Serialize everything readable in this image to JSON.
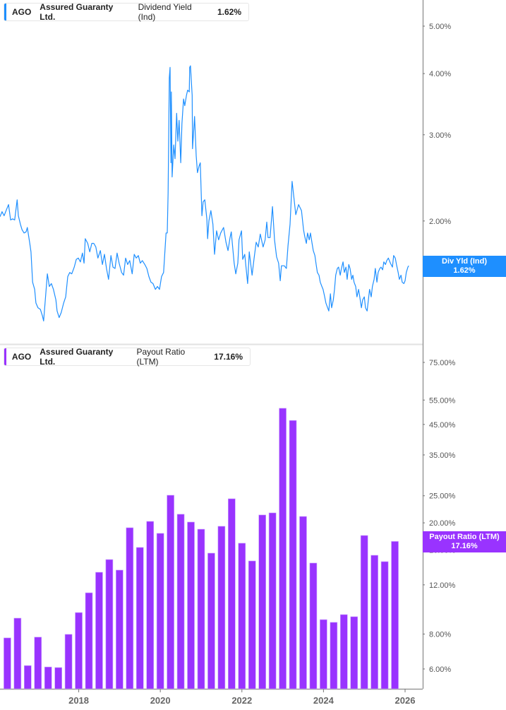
{
  "chart_data": [
    {
      "type": "line",
      "legend": {
        "ticker": "AGO",
        "company": "Assured Guaranty Ltd.",
        "metric": "Dividend Yield (Ind)",
        "value": "1.62%"
      },
      "badge": {
        "label": "Div Yld (Ind)",
        "value": "1.62%"
      },
      "color": "#1e8fff",
      "y_scale": "log",
      "y_ticks": [
        "2.00%",
        "3.00%",
        "4.00%",
        "5.00%"
      ],
      "y_tick_values": [
        2,
        3,
        4,
        5
      ],
      "ylim": [
        1.2,
        5.6
      ],
      "series": [
        {
          "points": [
            [
              2016.07,
              2.04
            ],
            [
              2016.12,
              2.09
            ],
            [
              2016.17,
              2.05
            ],
            [
              2016.23,
              2.11
            ],
            [
              2016.28,
              2.16
            ],
            [
              2016.33,
              2.01
            ],
            [
              2016.38,
              2.02
            ],
            [
              2016.43,
              2.01
            ],
            [
              2016.49,
              2.21
            ],
            [
              2016.52,
              2.05
            ],
            [
              2016.57,
              1.97
            ],
            [
              2016.61,
              1.92
            ],
            [
              2016.66,
              1.89
            ],
            [
              2016.71,
              1.9
            ],
            [
              2016.74,
              1.94
            ],
            [
              2016.8,
              1.8
            ],
            [
              2016.83,
              1.73
            ],
            [
              2016.87,
              1.5
            ],
            [
              2016.92,
              1.45
            ],
            [
              2016.95,
              1.36
            ],
            [
              2017.0,
              1.33
            ],
            [
              2017.06,
              1.32
            ],
            [
              2017.11,
              1.28
            ],
            [
              2017.14,
              1.25
            ],
            [
              2017.18,
              1.38
            ],
            [
              2017.23,
              1.56
            ],
            [
              2017.28,
              1.47
            ],
            [
              2017.33,
              1.49
            ],
            [
              2017.38,
              1.45
            ],
            [
              2017.44,
              1.38
            ],
            [
              2017.47,
              1.31
            ],
            [
              2017.52,
              1.27
            ],
            [
              2017.57,
              1.3
            ],
            [
              2017.63,
              1.36
            ],
            [
              2017.68,
              1.4
            ],
            [
              2017.73,
              1.54
            ],
            [
              2017.78,
              1.57
            ],
            [
              2017.83,
              1.56
            ],
            [
              2017.89,
              1.61
            ],
            [
              2017.94,
              1.67
            ],
            [
              2017.99,
              1.68
            ],
            [
              2018.04,
              1.65
            ],
            [
              2018.09,
              1.72
            ],
            [
              2018.13,
              1.64
            ],
            [
              2018.16,
              1.84
            ],
            [
              2018.22,
              1.8
            ],
            [
              2018.27,
              1.73
            ],
            [
              2018.32,
              1.8
            ],
            [
              2018.37,
              1.8
            ],
            [
              2018.42,
              1.77
            ],
            [
              2018.47,
              1.68
            ],
            [
              2018.53,
              1.74
            ],
            [
              2018.58,
              1.63
            ],
            [
              2018.63,
              1.71
            ],
            [
              2018.68,
              1.6
            ],
            [
              2018.73,
              1.52
            ],
            [
              2018.79,
              1.7
            ],
            [
              2018.84,
              1.61
            ],
            [
              2018.89,
              1.6
            ],
            [
              2018.94,
              1.72
            ],
            [
              2018.99,
              1.64
            ],
            [
              2019.05,
              1.57
            ],
            [
              2019.1,
              1.55
            ],
            [
              2019.15,
              1.68
            ],
            [
              2019.2,
              1.63
            ],
            [
              2019.25,
              1.66
            ],
            [
              2019.31,
              1.56
            ],
            [
              2019.36,
              1.71
            ],
            [
              2019.41,
              1.68
            ],
            [
              2019.46,
              1.7
            ],
            [
              2019.51,
              1.64
            ],
            [
              2019.56,
              1.66
            ],
            [
              2019.62,
              1.63
            ],
            [
              2019.67,
              1.6
            ],
            [
              2019.72,
              1.54
            ],
            [
              2019.77,
              1.5
            ],
            [
              2019.82,
              1.49
            ],
            [
              2019.88,
              1.45
            ],
            [
              2019.93,
              1.47
            ],
            [
              2019.98,
              1.45
            ],
            [
              2020.03,
              1.54
            ],
            [
              2020.08,
              1.57
            ],
            [
              2020.14,
              1.89
            ],
            [
              2020.17,
              1.89
            ],
            [
              2020.19,
              2.28
            ],
            [
              2020.22,
              3.92
            ],
            [
              2020.24,
              4.12
            ],
            [
              2020.26,
              2.63
            ],
            [
              2020.27,
              3.67
            ],
            [
              2020.29,
              2.46
            ],
            [
              2020.33,
              2.86
            ],
            [
              2020.36,
              2.68
            ],
            [
              2020.4,
              3.32
            ],
            [
              2020.43,
              2.91
            ],
            [
              2020.46,
              3.21
            ],
            [
              2020.5,
              2.63
            ],
            [
              2020.53,
              3.16
            ],
            [
              2020.57,
              3.55
            ],
            [
              2020.6,
              3.44
            ],
            [
              2020.64,
              3.61
            ],
            [
              2020.67,
              3.7
            ],
            [
              2020.71,
              3.67
            ],
            [
              2020.72,
              4.12
            ],
            [
              2020.74,
              4.15
            ],
            [
              2020.78,
              3.61
            ],
            [
              2020.79,
              2.81
            ],
            [
              2020.83,
              3.16
            ],
            [
              2020.84,
              3.27
            ],
            [
              2020.88,
              2.72
            ],
            [
              2020.91,
              2.51
            ],
            [
              2020.95,
              2.59
            ],
            [
              2020.98,
              2.63
            ],
            [
              2021.02,
              2.05
            ],
            [
              2021.05,
              2.19
            ],
            [
              2021.09,
              2.21
            ],
            [
              2021.14,
              2.02
            ],
            [
              2021.16,
              1.84
            ],
            [
              2021.19,
              2.0
            ],
            [
              2021.24,
              2.1
            ],
            [
              2021.29,
              1.97
            ],
            [
              2021.33,
              1.71
            ],
            [
              2021.38,
              1.91
            ],
            [
              2021.43,
              1.83
            ],
            [
              2021.48,
              1.89
            ],
            [
              2021.55,
              1.94
            ],
            [
              2021.61,
              1.81
            ],
            [
              2021.66,
              1.74
            ],
            [
              2021.71,
              1.85
            ],
            [
              2021.74,
              1.9
            ],
            [
              2021.81,
              1.64
            ],
            [
              2021.85,
              1.56
            ],
            [
              2021.9,
              1.64
            ],
            [
              2021.93,
              1.83
            ],
            [
              2021.99,
              1.91
            ],
            [
              2022.02,
              1.67
            ],
            [
              2022.07,
              1.71
            ],
            [
              2022.14,
              1.49
            ],
            [
              2022.18,
              1.73
            ],
            [
              2022.25,
              1.55
            ],
            [
              2022.3,
              1.68
            ],
            [
              2022.35,
              1.81
            ],
            [
              2022.4,
              1.77
            ],
            [
              2022.45,
              1.88
            ],
            [
              2022.52,
              1.77
            ],
            [
              2022.57,
              1.83
            ],
            [
              2022.61,
              1.99
            ],
            [
              2022.64,
              1.85
            ],
            [
              2022.69,
              1.85
            ],
            [
              2022.75,
              2.14
            ],
            [
              2022.8,
              1.83
            ],
            [
              2022.85,
              1.69
            ],
            [
              2022.9,
              1.64
            ],
            [
              2022.94,
              1.51
            ],
            [
              2022.97,
              1.62
            ],
            [
              2023.04,
              1.62
            ],
            [
              2023.09,
              1.6
            ],
            [
              2023.13,
              1.78
            ],
            [
              2023.18,
              1.97
            ],
            [
              2023.23,
              2.41
            ],
            [
              2023.28,
              2.21
            ],
            [
              2023.32,
              2.06
            ],
            [
              2023.39,
              2.16
            ],
            [
              2023.46,
              2.1
            ],
            [
              2023.51,
              1.92
            ],
            [
              2023.54,
              1.86
            ],
            [
              2023.58,
              1.8
            ],
            [
              2023.61,
              1.89
            ],
            [
              2023.65,
              1.83
            ],
            [
              2023.68,
              1.89
            ],
            [
              2023.72,
              1.8
            ],
            [
              2023.75,
              1.74
            ],
            [
              2023.79,
              1.7
            ],
            [
              2023.82,
              1.63
            ],
            [
              2023.85,
              1.57
            ],
            [
              2023.89,
              1.55
            ],
            [
              2023.92,
              1.5
            ],
            [
              2023.96,
              1.47
            ],
            [
              2023.99,
              1.45
            ],
            [
              2024.03,
              1.4
            ],
            [
              2024.06,
              1.36
            ],
            [
              2024.1,
              1.33
            ],
            [
              2024.13,
              1.31
            ],
            [
              2024.17,
              1.42
            ],
            [
              2024.2,
              1.33
            ],
            [
              2024.24,
              1.38
            ],
            [
              2024.27,
              1.45
            ],
            [
              2024.3,
              1.55
            ],
            [
              2024.34,
              1.6
            ],
            [
              2024.37,
              1.61
            ],
            [
              2024.41,
              1.55
            ],
            [
              2024.44,
              1.6
            ],
            [
              2024.48,
              1.65
            ],
            [
              2024.51,
              1.57
            ],
            [
              2024.55,
              1.61
            ],
            [
              2024.58,
              1.52
            ],
            [
              2024.62,
              1.63
            ],
            [
              2024.65,
              1.6
            ],
            [
              2024.69,
              1.52
            ],
            [
              2024.72,
              1.55
            ],
            [
              2024.75,
              1.5
            ],
            [
              2024.79,
              1.47
            ],
            [
              2024.82,
              1.4
            ],
            [
              2024.86,
              1.45
            ],
            [
              2024.89,
              1.4
            ],
            [
              2024.93,
              1.33
            ],
            [
              2024.96,
              1.38
            ],
            [
              2025.0,
              1.4
            ],
            [
              2025.03,
              1.33
            ],
            [
              2025.07,
              1.31
            ],
            [
              2025.1,
              1.38
            ],
            [
              2025.13,
              1.45
            ],
            [
              2025.17,
              1.4
            ],
            [
              2025.2,
              1.47
            ],
            [
              2025.24,
              1.52
            ],
            [
              2025.27,
              1.6
            ],
            [
              2025.31,
              1.5
            ],
            [
              2025.34,
              1.57
            ],
            [
              2025.38,
              1.6
            ],
            [
              2025.41,
              1.61
            ],
            [
              2025.45,
              1.59
            ],
            [
              2025.48,
              1.65
            ],
            [
              2025.52,
              1.63
            ],
            [
              2025.55,
              1.66
            ],
            [
              2025.59,
              1.68
            ],
            [
              2025.64,
              1.64
            ],
            [
              2025.69,
              1.61
            ],
            [
              2025.72,
              1.7
            ],
            [
              2025.76,
              1.68
            ],
            [
              2025.79,
              1.63
            ],
            [
              2025.83,
              1.57
            ],
            [
              2025.86,
              1.52
            ],
            [
              2025.9,
              1.55
            ],
            [
              2025.93,
              1.5
            ],
            [
              2025.97,
              1.49
            ],
            [
              2026.0,
              1.51
            ],
            [
              2026.03,
              1.57
            ],
            [
              2026.07,
              1.61
            ],
            [
              2026.09,
              1.62
            ]
          ]
        }
      ]
    },
    {
      "type": "bar",
      "legend": {
        "ticker": "AGO",
        "company": "Assured Guaranty Ltd.",
        "metric": "Payout Ratio (LTM)",
        "value": "17.16%"
      },
      "badge": {
        "label": "Payout Ratio (LTM)",
        "value": "17.16%"
      },
      "color": "#9933ff",
      "y_scale": "log",
      "y_ticks": [
        "6.00%",
        "8.00%",
        "12.00%",
        "16.00%",
        "20.00%",
        "25.00%",
        "35.00%",
        "45.00%",
        "55.00%",
        "75.00%"
      ],
      "y_tick_values": [
        6,
        8,
        12,
        16,
        20,
        25,
        35,
        45,
        55,
        75
      ],
      "categories": [
        "2016 Q1",
        "2016 Q2",
        "2016 Q3",
        "2016 Q4",
        "2017 Q1",
        "2017 Q2",
        "2017 Q3",
        "2017 Q4",
        "2018 Q1",
        "2018 Q2",
        "2018 Q3",
        "2018 Q4",
        "2019 Q1",
        "2019 Q2",
        "2019 Q3",
        "2019 Q4",
        "2020 Q1",
        "2020 Q2",
        "2020 Q3",
        "2020 Q4",
        "2021 Q1",
        "2021 Q2",
        "2021 Q3",
        "2021 Q4",
        "2022 Q1",
        "2022 Q2",
        "2022 Q3",
        "2022 Q4",
        "2023 Q1",
        "2023 Q2",
        "2023 Q3",
        "2023 Q4",
        "2024 Q1",
        "2024 Q2",
        "2024 Q3",
        "2024 Q4",
        "2025 Q1",
        "2025 Q2",
        "2025 Q3"
      ],
      "values": [
        7.75,
        9.12,
        6.17,
        7.8,
        6.1,
        6.07,
        7.98,
        9.55,
        11.24,
        13.31,
        14.78,
        13.55,
        19.21,
        16.33,
        20.24,
        18.34,
        25.11,
        21.47,
        20.13,
        18.98,
        15.58,
        19.44,
        24.39,
        16.91,
        14.61,
        21.34,
        21.71,
        51.4,
        46.5,
        21.08,
        14.36,
        9.01,
        8.81,
        9.39,
        9.23,
        18.02,
        15.31,
        14.53,
        17.16
      ]
    }
  ],
  "x_axis": {
    "ticks": [
      "2018",
      "2020",
      "2022",
      "2024",
      "2026"
    ],
    "tick_values": [
      2018,
      2020,
      2022,
      2024,
      2026
    ]
  }
}
